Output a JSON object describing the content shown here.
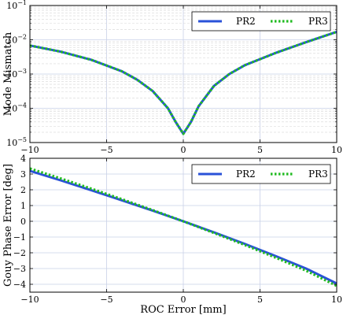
{
  "chart_data": [
    {
      "type": "line",
      "ylabel": "Mode Mismatch",
      "xlabel": "",
      "xlim": [
        -10,
        10
      ],
      "ylim": [
        1e-05,
        0.1
      ],
      "yscale": "log",
      "grid": true,
      "legend_position": "top-right",
      "x_ticks": [
        -10,
        -5,
        0,
        5,
        10
      ],
      "x_tick_labels": [
        "−10",
        "−5",
        "0",
        "5",
        "10"
      ],
      "y_ticks": [
        1e-05,
        0.0001,
        0.001,
        0.01,
        0.1
      ],
      "y_tick_labels": [
        {
          "base": "10",
          "exp": "−5"
        },
        {
          "base": "10",
          "exp": "−4"
        },
        {
          "base": "10",
          "exp": "−3"
        },
        {
          "base": "10",
          "exp": "−2"
        },
        {
          "base": "10",
          "exp": "−1"
        }
      ],
      "series": [
        {
          "name": "PR2",
          "color": "#2a52d8",
          "style": "solid",
          "x": [
            -10,
            -8,
            -6,
            -4,
            -3,
            -2,
            -1,
            -0.5,
            0,
            0.5,
            1,
            2,
            3,
            4,
            6,
            8,
            10
          ],
          "y": [
            0.0068,
            0.0045,
            0.0026,
            0.0012,
            0.00068,
            0.00032,
            0.0001,
            4e-05,
            1.8e-05,
            4e-05,
            0.000115,
            0.00045,
            0.001,
            0.0018,
            0.0041,
            0.0085,
            0.017
          ]
        },
        {
          "name": "PR3",
          "color": "#22bb22",
          "style": "dotted",
          "x": [
            -10,
            -8,
            -6,
            -4,
            -3,
            -2,
            -1,
            -0.5,
            0,
            0.5,
            1,
            2,
            3,
            4,
            6,
            8,
            10
          ],
          "y": [
            0.0068,
            0.0045,
            0.0026,
            0.0012,
            0.00068,
            0.00032,
            0.0001,
            4e-05,
            1.8e-05,
            4e-05,
            0.000115,
            0.00045,
            0.001,
            0.0018,
            0.0041,
            0.0085,
            0.017
          ]
        }
      ]
    },
    {
      "type": "line",
      "ylabel": "Gouy Phase Error [deg]",
      "xlabel": "ROC Error [mm]",
      "xlim": [
        -10,
        10
      ],
      "ylim": [
        -4.5,
        4
      ],
      "yscale": "linear",
      "grid": true,
      "legend_position": "top-right",
      "x_ticks": [
        -10,
        -5,
        0,
        5,
        10
      ],
      "x_tick_labels": [
        "−10",
        "−5",
        "0",
        "5",
        "10"
      ],
      "y_ticks": [
        -4,
        -3,
        -2,
        -1,
        0,
        1,
        2,
        3,
        4
      ],
      "y_tick_labels": [
        "−4",
        "−3",
        "−2",
        "−1",
        "0",
        "1",
        "2",
        "3",
        "4"
      ],
      "series": [
        {
          "name": "PR2",
          "color": "#2a52d8",
          "style": "solid",
          "x": [
            -10,
            -8,
            -6,
            -4,
            -2,
            0,
            2,
            4,
            6,
            8,
            10
          ],
          "y": [
            3.2,
            2.6,
            1.97,
            1.33,
            0.68,
            0.0,
            -0.7,
            -1.43,
            -2.2,
            -3.0,
            -3.95
          ]
        },
        {
          "name": "PR3",
          "color": "#22bb22",
          "style": "dotted",
          "x": [
            -10,
            -8,
            -6,
            -4,
            -2,
            0,
            2,
            4,
            6,
            8,
            10
          ],
          "y": [
            3.35,
            2.72,
            2.07,
            1.4,
            0.71,
            0.0,
            -0.74,
            -1.5,
            -2.3,
            -3.13,
            -4.1
          ]
        }
      ]
    }
  ]
}
